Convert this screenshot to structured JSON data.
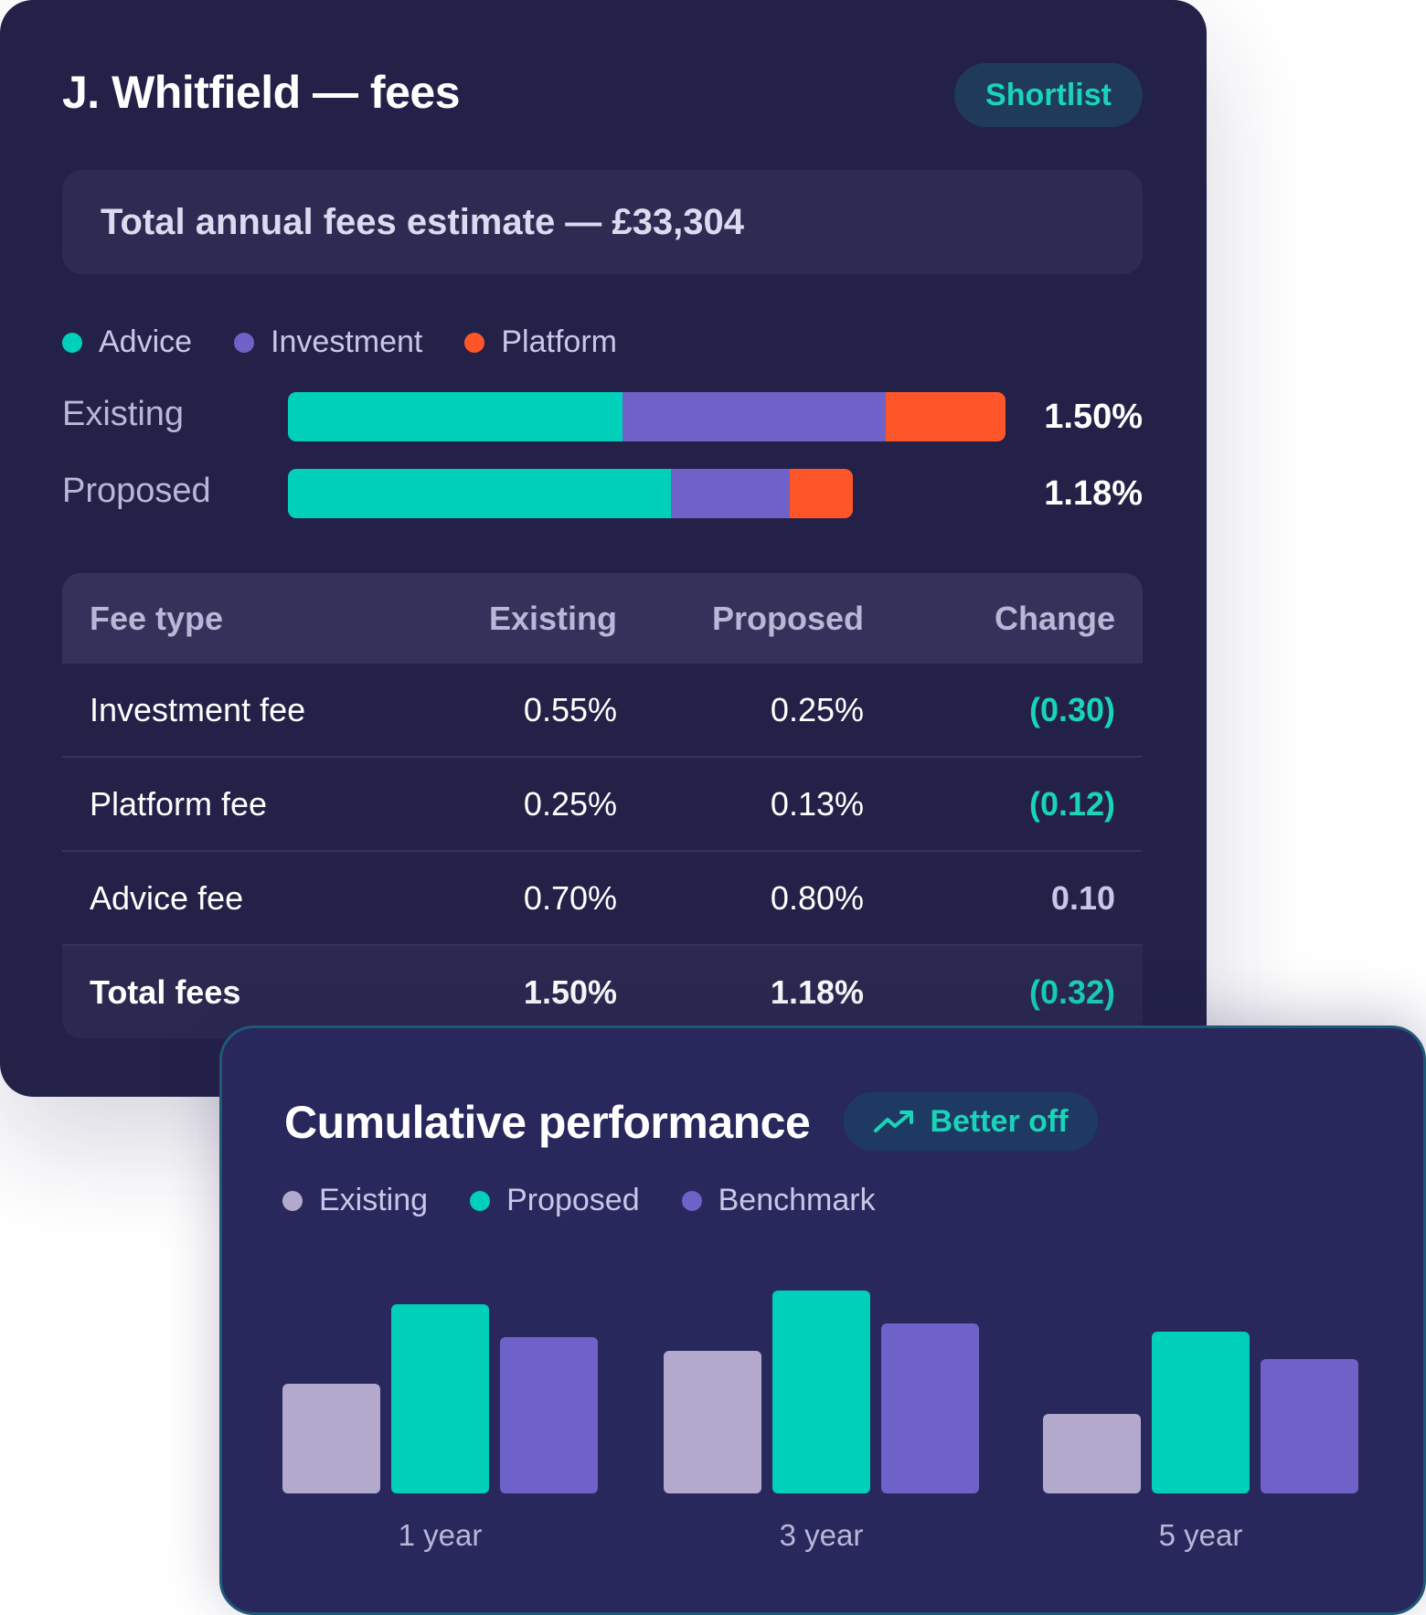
{
  "fees_card": {
    "title": "J. Whitfield — fees",
    "badge": "Shortlist",
    "total_estimate": "Total annual fees estimate — £33,304",
    "legend": [
      {
        "label": "Advice",
        "color": "#00cfb9"
      },
      {
        "label": "Investment",
        "color": "#6e62c9"
      },
      {
        "label": "Platform",
        "color": "#ff5629"
      }
    ],
    "bars": [
      {
        "label": "Existing",
        "total": "1.50%",
        "segments": [
          0.7,
          0.55,
          0.25
        ]
      },
      {
        "label": "Proposed",
        "total": "1.18%",
        "segments": [
          0.8,
          0.25,
          0.13
        ]
      }
    ],
    "table": {
      "headers": [
        "Fee type",
        "Existing",
        "Proposed",
        "Change"
      ],
      "rows": [
        {
          "type": "Investment fee",
          "existing": "0.55%",
          "proposed": "0.25%",
          "change": "(0.30)",
          "direction": "down"
        },
        {
          "type": "Platform fee",
          "existing": "0.25%",
          "proposed": "0.13%",
          "change": "(0.12)",
          "direction": "down"
        },
        {
          "type": "Advice fee",
          "existing": "0.70%",
          "proposed": "0.80%",
          "change": "0.10",
          "direction": "up"
        }
      ],
      "total": {
        "type": "Total fees",
        "existing": "1.50%",
        "proposed": "1.18%",
        "change": "(0.32)"
      }
    }
  },
  "performance_card": {
    "title": "Cumulative performance",
    "badge": "Better off",
    "badge_icon": "trending-up-icon",
    "legend": [
      {
        "label": "Existing",
        "color": "#b3a9cd"
      },
      {
        "label": "Proposed",
        "color": "#00cfb9"
      },
      {
        "label": "Benchmark",
        "color": "#6e62c9"
      }
    ]
  },
  "chart_data": {
    "type": "bar",
    "categories": [
      "1 year",
      "3 year",
      "5 year"
    ],
    "series": [
      {
        "name": "Existing",
        "values": [
          40,
          52,
          29
        ]
      },
      {
        "name": "Proposed",
        "values": [
          69,
          74,
          59
        ]
      },
      {
        "name": "Benchmark",
        "values": [
          57,
          62,
          49
        ]
      }
    ],
    "ylim": [
      0,
      100
    ],
    "grid": false,
    "legend_position": "top-left"
  }
}
